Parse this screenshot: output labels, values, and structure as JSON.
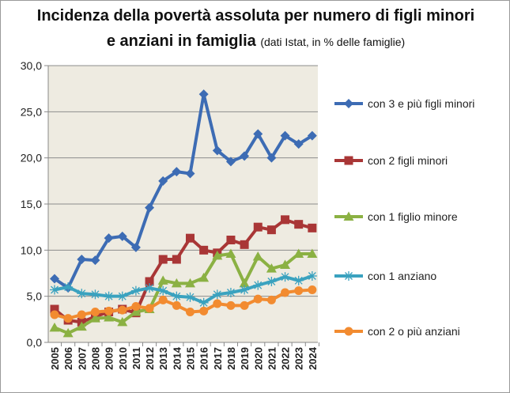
{
  "chart_data": {
    "type": "line",
    "title_line1": "Incidenza della povertà assoluta per numero di figli minori",
    "title_line2": "e anziani in famiglia",
    "subtitle": "(dati Istat, in % delle famiglie)",
    "xlabel": "",
    "ylabel": "",
    "ylim": [
      0,
      30
    ],
    "yticks": [
      "0,0",
      "5,0",
      "10,0",
      "15,0",
      "20,0",
      "25,0",
      "30,0"
    ],
    "grid": true,
    "legend_position": "right",
    "x": [
      "2005",
      "2006",
      "2007",
      "2008",
      "2009",
      "2010",
      "2011",
      "2012",
      "2013",
      "2014",
      "2015",
      "2016",
      "2017",
      "2018",
      "2019",
      "2020",
      "2021",
      "2022",
      "2023",
      "2024"
    ],
    "series": [
      {
        "name": "con 3 e più figli minori",
        "color": "#3d6cb4",
        "marker": "diamond",
        "values": [
          6.9,
          5.9,
          9.0,
          8.9,
          11.3,
          11.5,
          10.3,
          14.6,
          17.5,
          18.5,
          18.3,
          26.9,
          20.8,
          19.6,
          20.2,
          22.6,
          20.0,
          22.4,
          21.5,
          22.4
        ]
      },
      {
        "name": "con 2 figli minori",
        "color": "#a93636",
        "marker": "square",
        "values": [
          3.6,
          2.4,
          2.2,
          2.8,
          3.3,
          3.6,
          3.2,
          6.6,
          9.0,
          9.0,
          11.3,
          10.0,
          9.7,
          11.1,
          10.6,
          12.5,
          12.2,
          13.3,
          12.8,
          12.4
        ]
      },
      {
        "name": "con 1 figlio minore",
        "color": "#8bb143",
        "marker": "triangle",
        "values": [
          1.6,
          1.0,
          1.7,
          2.6,
          2.7,
          2.2,
          3.3,
          3.6,
          6.7,
          6.4,
          6.4,
          7.0,
          9.4,
          9.6,
          6.4,
          9.3,
          8.0,
          8.4,
          9.6,
          9.6
        ]
      },
      {
        "name": "con 1 anziano",
        "color": "#3aa2bf",
        "marker": "star",
        "values": [
          5.7,
          6.0,
          5.3,
          5.2,
          5.0,
          5.0,
          5.6,
          5.9,
          5.6,
          5.0,
          4.9,
          4.3,
          5.2,
          5.4,
          5.7,
          6.2,
          6.6,
          7.1,
          6.7,
          7.2
        ]
      },
      {
        "name": "con 2 o più anziani",
        "color": "#f28b30",
        "marker": "circle",
        "values": [
          3.0,
          2.6,
          3.0,
          3.3,
          3.4,
          3.5,
          3.9,
          3.7,
          4.6,
          4.0,
          3.3,
          3.4,
          4.2,
          4.0,
          4.0,
          4.7,
          4.6,
          5.4,
          5.6,
          5.7
        ]
      }
    ]
  },
  "colors": {
    "plot_background": "#eeebe1",
    "gridline": "#8c8c8c"
  }
}
